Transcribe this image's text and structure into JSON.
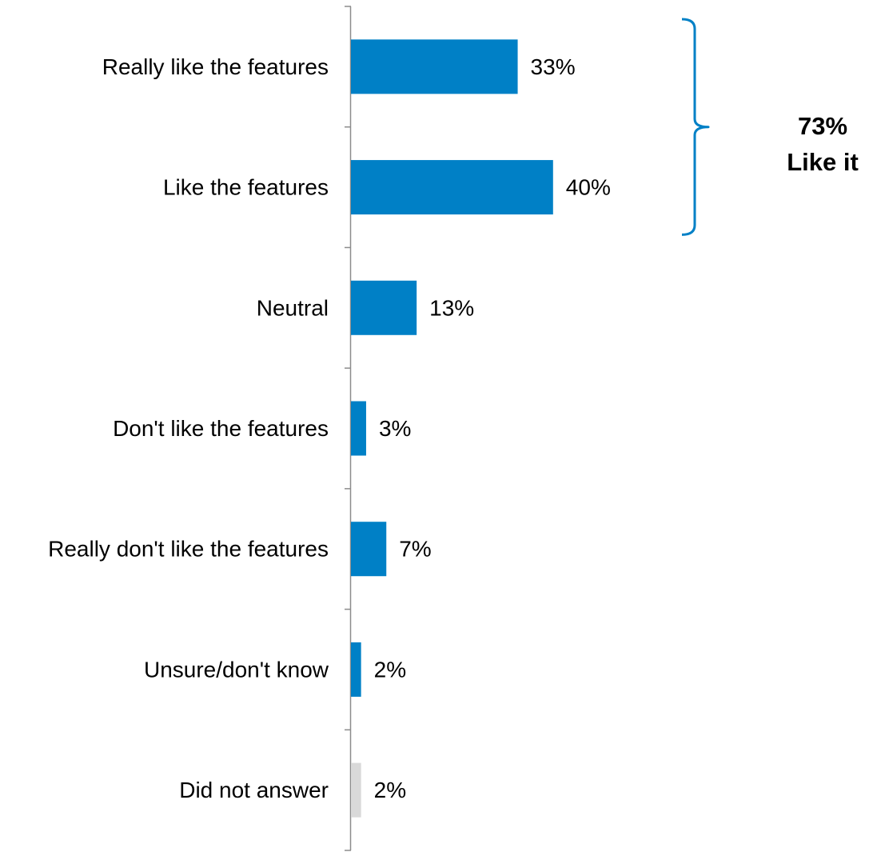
{
  "chart_data": {
    "type": "bar",
    "orientation": "horizontal",
    "categories": [
      "Really like the features",
      "Like the features",
      "Neutral",
      "Don't like the features",
      "Really don't like the features",
      "Unsure/don't know",
      "Did not answer"
    ],
    "values": [
      33,
      40,
      13,
      3,
      7,
      2,
      2
    ],
    "value_labels": [
      "33%",
      "40%",
      "13%",
      "3%",
      "7%",
      "2%",
      "2%"
    ],
    "bar_colors": [
      "#0080C6",
      "#0080C6",
      "#0080C6",
      "#0080C6",
      "#0080C6",
      "#0080C6",
      "#D9D9D9"
    ],
    "xlim": [
      0,
      100
    ],
    "grid": false,
    "legend": "none",
    "annotation": {
      "bracket_categories": [
        "Really like the features",
        "Like the features"
      ],
      "value": "73%",
      "label": "Like it",
      "bracket_color": "#0080C6"
    }
  }
}
